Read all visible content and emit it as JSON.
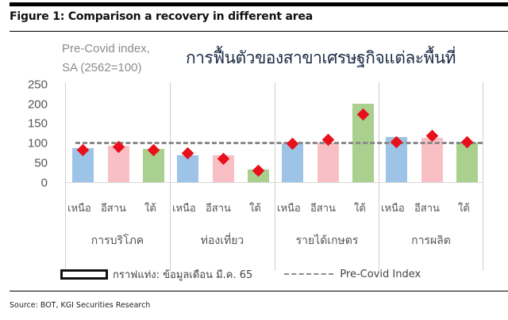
{
  "figure": {
    "title": "Figure 1: Comparison a recovery in different area",
    "source": "Source: BOT, KGI Securities Research"
  },
  "chart_data": {
    "type": "bar",
    "title": "การฟื้นตัวของสาขาเศรษฐกิจแต่ละพื้นที่",
    "ylabel_line1": "Pre-Covid index,",
    "ylabel_line2": "SA (2562=100)",
    "xlabel": "",
    "ylim": [
      0,
      250
    ],
    "yticks": [
      "250",
      "200",
      "150",
      "100",
      "50",
      "0"
    ],
    "groups": [
      "การบริโภค",
      "ท่องเที่ยว",
      "รายได้เกษตร",
      "การผลิต"
    ],
    "categories": [
      "เหนือ",
      "อีสาน",
      "ใต้"
    ],
    "series": [
      {
        "name": "กราฟแท่ง: ข้อมูลเดือน มี.ค. 65 (bar)",
        "type": "bar",
        "values": {
          "การบริโภค": [
            88,
            93,
            85
          ],
          "ท่องเที่ยว": [
            70,
            70,
            34
          ],
          "รายได้เกษตร": [
            100,
            102,
            200
          ],
          "การผลิต": [
            116,
            114,
            102
          ]
        },
        "colors": [
          "#9dc3e6",
          "#f8c0c4",
          "#a9d08e"
        ]
      },
      {
        "name": "marker (diamond)",
        "type": "scatter",
        "values": {
          "การบริโภค": [
            83,
            91,
            83
          ],
          "ท่องเที่ยว": [
            74,
            60,
            31
          ],
          "รายได้เกษตร": [
            98,
            108,
            173
          ],
          "การผลิต": [
            102,
            118,
            102
          ]
        },
        "color": "#e8101a"
      },
      {
        "name": "Pre-Covid Index",
        "type": "reference_line",
        "value": 100,
        "style": "dashed",
        "color": "#8a8a8a"
      }
    ],
    "legend": {
      "bar_label": "กราฟแท่ง: ข้อมูลเดือน มี.ค. 65",
      "line_label": "Pre-Covid Index",
      "position": "bottom"
    },
    "grid": false
  }
}
